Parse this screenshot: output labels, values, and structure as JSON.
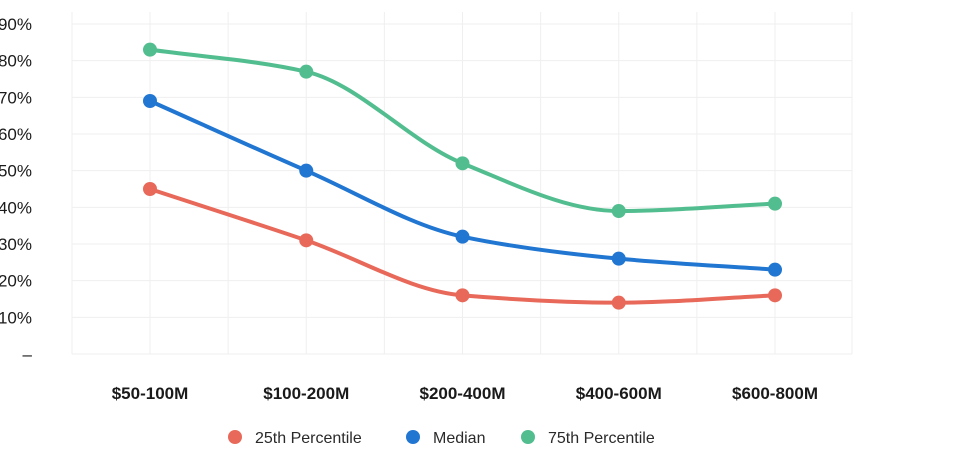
{
  "chart_data": {
    "type": "line",
    "categories": [
      "$50-100M",
      "$100-200M",
      "$200-400M",
      "$400-600M",
      "$600-800M"
    ],
    "series": [
      {
        "name": "25th Percentile",
        "color": "#e8695a",
        "values": [
          45,
          31,
          16,
          14,
          16
        ]
      },
      {
        "name": "Median",
        "color": "#2176d2",
        "values": [
          69,
          50,
          32,
          26,
          23
        ]
      },
      {
        "name": "75th Percentile",
        "color": "#52bd8f",
        "values": [
          83,
          77,
          52,
          39,
          41
        ]
      }
    ],
    "y_ticks": [
      {
        "value": 0,
        "label": "–"
      },
      {
        "value": 10,
        "label": "10%"
      },
      {
        "value": 20,
        "label": "20%"
      },
      {
        "value": 30,
        "label": "30%"
      },
      {
        "value": 40,
        "label": "40%"
      },
      {
        "value": 50,
        "label": "50%"
      },
      {
        "value": 60,
        "label": "60%"
      },
      {
        "value": 70,
        "label": "70%"
      },
      {
        "value": 80,
        "label": "80%"
      },
      {
        "value": 90,
        "label": "90%"
      }
    ],
    "ylim": [
      0,
      90
    ],
    "grid": true,
    "legend_position": "bottom-center",
    "title": "",
    "xlabel": "",
    "ylabel": ""
  }
}
